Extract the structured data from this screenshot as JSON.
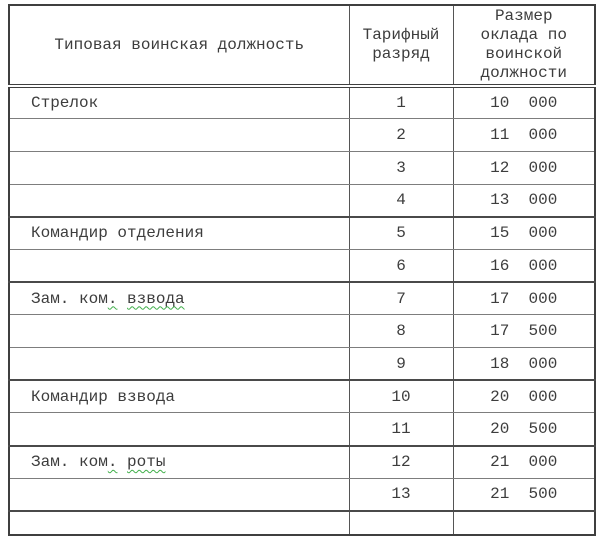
{
  "table": {
    "headers": [
      "Типовая воинская должность",
      "Тарифный\nразряд",
      "Размер\nоклада по\nвоинской\nдолжности"
    ],
    "rows": [
      {
        "position": "Стрелок",
        "grade": "1",
        "salary": "10  000"
      },
      {
        "position": "",
        "grade": "2",
        "salary": "11  000"
      },
      {
        "position": "",
        "grade": "3",
        "salary": "12  000"
      },
      {
        "position": "",
        "grade": "4",
        "salary": "13  000"
      },
      {
        "position": "Командир отделения",
        "grade": "5",
        "salary": "15  000",
        "group_start": true
      },
      {
        "position": "",
        "grade": "6",
        "salary": "16  000"
      },
      {
        "position": "Зам. ком. взвода",
        "grade": "7",
        "salary": "17  000",
        "group_start": true,
        "position_parts": [
          {
            "text": "Зам. ком",
            "wavy": false
          },
          {
            "text": ".",
            "wavy": true
          },
          {
            "text": " ",
            "wavy": false
          },
          {
            "text": "взвода",
            "wavy": true
          }
        ]
      },
      {
        "position": "",
        "grade": "8",
        "salary": "17  500"
      },
      {
        "position": "",
        "grade": "9",
        "salary": "18  000"
      },
      {
        "position": "Командир взвода",
        "grade": "10",
        "salary": "20  000",
        "group_start": true
      },
      {
        "position": "",
        "grade": "11",
        "salary": "20  500"
      },
      {
        "position": "Зам. ком. роты",
        "grade": "12",
        "salary": "21  000",
        "group_start": true,
        "position_parts": [
          {
            "text": "Зам. ком",
            "wavy": false
          },
          {
            "text": ".",
            "wavy": true
          },
          {
            "text": " ",
            "wavy": false
          },
          {
            "text": "роты",
            "wavy": true
          }
        ]
      },
      {
        "position": "",
        "grade": "13",
        "salary": "21  500"
      },
      {
        "position": "",
        "grade": "",
        "salary": "",
        "partial": true,
        "group_start": true
      }
    ]
  },
  "colors": {
    "text": "#3d3d3d",
    "outer_border": "#3f3f3f",
    "inner_border": "#7d7d7d",
    "spellcheck_squiggle": "#3fae49",
    "background": "#ffffff"
  }
}
